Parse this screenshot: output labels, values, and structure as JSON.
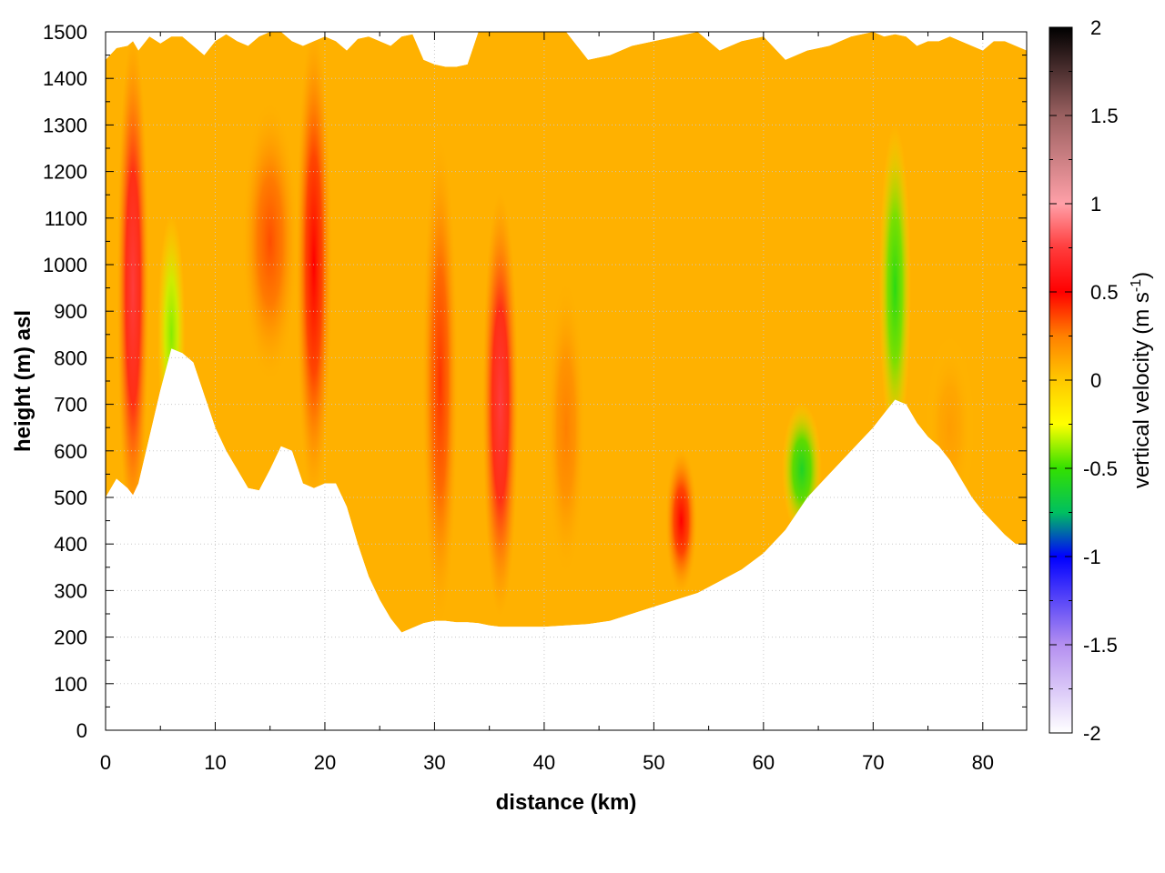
{
  "chart_data": {
    "type": "heatmap",
    "title": "",
    "xlabel": "distance (km)",
    "ylabel": "height (m) asl",
    "xlim": [
      0,
      84
    ],
    "ylim": [
      0,
      1500
    ],
    "xticks": [
      0,
      10,
      20,
      30,
      40,
      50,
      60,
      70,
      80
    ],
    "yticks": [
      0,
      100,
      200,
      300,
      400,
      500,
      600,
      700,
      800,
      900,
      1000,
      1100,
      1200,
      1300,
      1400,
      1500
    ],
    "grid": true,
    "background_value": 0.08,
    "colorbar": {
      "label_main": "vertical velocity (m s",
      "label_sup": "-1",
      "label_end": ")",
      "range": [
        -2,
        2
      ],
      "ticks": [
        "2",
        "1.5",
        "1",
        "0.5",
        "0",
        "-0.5",
        "-1",
        "-1.5",
        "-2"
      ],
      "tick_values": [
        2,
        1.5,
        1,
        0.5,
        0,
        -0.5,
        -1,
        -1.5,
        -2
      ],
      "colormap": [
        {
          "v": -2.0,
          "color": "#ffffff"
        },
        {
          "v": -1.5,
          "color": "#b48ff0"
        },
        {
          "v": -1.0,
          "color": "#0000ff"
        },
        {
          "v": -0.75,
          "color": "#00c060"
        },
        {
          "v": -0.5,
          "color": "#33e000"
        },
        {
          "v": -0.25,
          "color": "#ffff00"
        },
        {
          "v": 0.0,
          "color": "#ffc800"
        },
        {
          "v": 0.25,
          "color": "#ff8000"
        },
        {
          "v": 0.5,
          "color": "#ff0000"
        },
        {
          "v": 0.75,
          "color": "#ff3c3c"
        },
        {
          "v": 1.0,
          "color": "#ffa0a8"
        },
        {
          "v": 1.5,
          "color": "#9a6060"
        },
        {
          "v": 2.0,
          "color": "#000000"
        }
      ]
    },
    "terrain": {
      "distance_km": [
        0,
        1,
        2,
        2.5,
        3,
        4,
        5,
        6,
        7,
        8,
        9,
        10,
        11,
        12,
        13,
        14,
        15,
        16,
        17,
        18,
        19,
        20,
        21,
        22,
        23,
        24,
        25,
        26,
        27,
        28,
        29,
        30,
        31,
        32,
        33,
        34,
        35,
        36,
        38,
        40,
        42,
        44,
        46,
        48,
        50,
        52,
        54,
        56,
        58,
        60,
        62,
        64,
        66,
        68,
        70,
        71,
        72,
        73,
        74,
        75,
        76,
        77,
        78,
        79,
        80,
        81,
        82,
        83,
        84
      ],
      "ground_m": [
        500,
        540,
        520,
        505,
        530,
        630,
        730,
        820,
        810,
        790,
        720,
        650,
        600,
        560,
        520,
        515,
        560,
        610,
        600,
        530,
        520,
        530,
        530,
        480,
        400,
        330,
        280,
        240,
        210,
        220,
        230,
        235,
        235,
        232,
        232,
        230,
        225,
        222,
        222,
        222,
        225,
        228,
        235,
        250,
        265,
        280,
        295,
        320,
        345,
        380,
        430,
        500,
        550,
        600,
        650,
        680,
        710,
        700,
        660,
        630,
        610,
        580,
        540,
        500,
        470,
        445,
        420,
        400,
        400
      ],
      "top_m": [
        1440,
        1465,
        1470,
        1480,
        1460,
        1490,
        1475,
        1490,
        1490,
        1470,
        1450,
        1480,
        1495,
        1480,
        1470,
        1490,
        1500,
        1500,
        1480,
        1470,
        1480,
        1490,
        1480,
        1460,
        1485,
        1490,
        1480,
        1470,
        1490,
        1495,
        1440,
        1430,
        1425,
        1425,
        1430,
        1500,
        1500,
        1500,
        1500,
        1500,
        1500,
        1440,
        1450,
        1470,
        1480,
        1490,
        1500,
        1460,
        1480,
        1490,
        1440,
        1460,
        1470,
        1490,
        1500,
        1490,
        1495,
        1490,
        1470,
        1480,
        1480,
        1490,
        1480,
        1470,
        1460,
        1480,
        1480,
        1470,
        1460
      ]
    },
    "updraft_features": [
      {
        "x_km": 2.5,
        "y_center_m": 950,
        "y_extent_m": 420,
        "x_extent_km": 0.8,
        "w_ms": 0.75
      },
      {
        "x_km": 15.0,
        "y_center_m": 1050,
        "y_extent_m": 230,
        "x_extent_km": 1.4,
        "w_ms": 0.35
      },
      {
        "x_km": 19.0,
        "y_center_m": 1000,
        "y_extent_m": 400,
        "x_extent_km": 0.9,
        "w_ms": 0.5
      },
      {
        "x_km": 30.5,
        "y_center_m": 750,
        "y_extent_m": 400,
        "x_extent_km": 0.9,
        "w_ms": 0.4
      },
      {
        "x_km": 36.0,
        "y_center_m": 700,
        "y_extent_m": 350,
        "x_extent_km": 0.9,
        "w_ms": 0.75
      },
      {
        "x_km": 42.0,
        "y_center_m": 650,
        "y_extent_m": 250,
        "x_extent_km": 1.0,
        "w_ms": 0.25
      },
      {
        "x_km": 52.5,
        "y_center_m": 450,
        "y_extent_m": 120,
        "x_extent_km": 0.8,
        "w_ms": 0.5
      },
      {
        "x_km": 6.0,
        "y_center_m": 850,
        "y_extent_m": 200,
        "x_extent_km": 0.7,
        "w_ms": -0.4
      },
      {
        "x_km": 63.5,
        "y_center_m": 560,
        "y_extent_m": 110,
        "x_extent_km": 1.0,
        "w_ms": -0.6
      },
      {
        "x_km": 72.0,
        "y_center_m": 950,
        "y_extent_m": 270,
        "x_extent_km": 0.8,
        "w_ms": -0.55
      },
      {
        "x_km": 77.0,
        "y_center_m": 650,
        "y_extent_m": 150,
        "x_extent_km": 1.2,
        "w_ms": 0.15
      }
    ]
  }
}
